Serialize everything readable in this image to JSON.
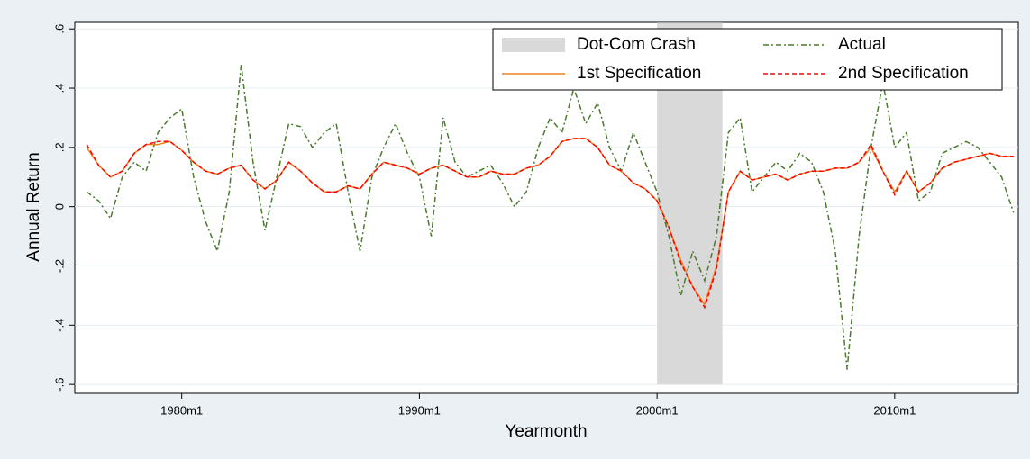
{
  "chart_data": {
    "type": "line",
    "xlabel": "Yearmonth",
    "ylabel": "Annual Return",
    "x": [
      1976,
      1976.5,
      1977,
      1977.5,
      1978,
      1978.5,
      1979,
      1979.5,
      1980,
      1980.5,
      1981,
      1981.5,
      1982,
      1982.5,
      1983,
      1983.5,
      1984,
      1984.5,
      1985,
      1985.5,
      1986,
      1986.5,
      1987,
      1987.5,
      1988,
      1988.5,
      1989,
      1989.5,
      1990,
      1990.5,
      1991,
      1991.5,
      1992,
      1992.5,
      1993,
      1993.5,
      1994,
      1994.5,
      1995,
      1995.5,
      1996,
      1996.5,
      1997,
      1997.5,
      1998,
      1998.5,
      1999,
      1999.5,
      2000,
      2000.5,
      2001,
      2001.5,
      2002,
      2002.5,
      2003,
      2003.5,
      2004,
      2004.5,
      2005,
      2005.5,
      2006,
      2006.5,
      2007,
      2007.5,
      2008,
      2008.5,
      2009,
      2009.5,
      2010,
      2010.5,
      2011,
      2011.5,
      2012,
      2012.5,
      2013,
      2013.5,
      2014,
      2014.5,
      2015
    ],
    "shade": {
      "name": "Dot-Com Crash",
      "color": "#d9d9d9",
      "x0": 2000,
      "x1": 2002.75,
      "y0": -0.6,
      "y1": 0.6
    },
    "series": [
      {
        "name": "Actual",
        "color": "#4a7a2c",
        "dash": "6 3 2 3",
        "values": [
          0.05,
          0.02,
          -0.04,
          0.1,
          0.15,
          0.12,
          0.25,
          0.3,
          0.33,
          0.1,
          -0.05,
          -0.15,
          0.05,
          0.48,
          0.15,
          -0.08,
          0.1,
          0.28,
          0.27,
          0.2,
          0.25,
          0.28,
          0.05,
          -0.15,
          0.1,
          0.2,
          0.28,
          0.18,
          0.1,
          -0.1,
          0.3,
          0.15,
          0.1,
          0.12,
          0.14,
          0.08,
          0.0,
          0.05,
          0.2,
          0.3,
          0.25,
          0.4,
          0.28,
          0.35,
          0.2,
          0.12,
          0.25,
          0.15,
          0.05,
          -0.1,
          -0.3,
          -0.15,
          -0.25,
          -0.1,
          0.25,
          0.3,
          0.05,
          0.1,
          0.15,
          0.12,
          0.18,
          0.15,
          0.05,
          -0.15,
          -0.55,
          -0.1,
          0.2,
          0.42,
          0.2,
          0.25,
          0.02,
          0.05,
          0.18,
          0.2,
          0.22,
          0.2,
          0.15,
          0.1,
          -0.02
        ]
      },
      {
        "name": "1st Specification",
        "color": "#f08020",
        "dash": "",
        "values": [
          0.2,
          0.14,
          0.1,
          0.12,
          0.18,
          0.21,
          0.21,
          0.22,
          0.19,
          0.15,
          0.12,
          0.11,
          0.13,
          0.14,
          0.09,
          0.06,
          0.09,
          0.15,
          0.12,
          0.08,
          0.05,
          0.05,
          0.07,
          0.06,
          0.11,
          0.15,
          0.14,
          0.13,
          0.11,
          0.13,
          0.14,
          0.12,
          0.1,
          0.1,
          0.12,
          0.11,
          0.11,
          0.13,
          0.14,
          0.17,
          0.22,
          0.23,
          0.23,
          0.2,
          0.14,
          0.12,
          0.08,
          0.06,
          0.02,
          -0.07,
          -0.18,
          -0.27,
          -0.33,
          -0.2,
          0.05,
          0.12,
          0.09,
          0.1,
          0.11,
          0.09,
          0.11,
          0.12,
          0.12,
          0.13,
          0.13,
          0.15,
          0.2,
          0.12,
          0.05,
          0.12,
          0.05,
          0.08,
          0.13,
          0.15,
          0.16,
          0.17,
          0.18,
          0.17,
          0.17
        ]
      },
      {
        "name": "2nd Specification",
        "color": "#ff0000",
        "dash": "5 3",
        "values": [
          0.21,
          0.14,
          0.1,
          0.12,
          0.18,
          0.21,
          0.22,
          0.22,
          0.19,
          0.15,
          0.12,
          0.11,
          0.13,
          0.14,
          0.09,
          0.06,
          0.09,
          0.15,
          0.12,
          0.08,
          0.05,
          0.05,
          0.07,
          0.06,
          0.11,
          0.15,
          0.14,
          0.13,
          0.11,
          0.13,
          0.14,
          0.12,
          0.1,
          0.1,
          0.12,
          0.11,
          0.11,
          0.13,
          0.14,
          0.17,
          0.22,
          0.23,
          0.23,
          0.2,
          0.14,
          0.12,
          0.08,
          0.06,
          0.02,
          -0.07,
          -0.19,
          -0.27,
          -0.34,
          -0.21,
          0.05,
          0.12,
          0.09,
          0.1,
          0.11,
          0.09,
          0.11,
          0.12,
          0.12,
          0.13,
          0.13,
          0.15,
          0.21,
          0.12,
          0.04,
          0.12,
          0.05,
          0.08,
          0.13,
          0.15,
          0.16,
          0.17,
          0.18,
          0.17,
          0.17
        ]
      }
    ],
    "xlim": [
      1975.5,
      2015.2
    ],
    "xticks": [
      {
        "value": 1980,
        "label": "1980m1"
      },
      {
        "value": 1990,
        "label": "1990m1"
      },
      {
        "value": 2000,
        "label": "2000m1"
      },
      {
        "value": 2010,
        "label": "2010m1"
      }
    ],
    "ylim": [
      -0.63,
      0.625
    ],
    "yticks": [
      {
        "value": -0.6,
        "label": "-.6"
      },
      {
        "value": -0.4,
        "label": "-.4"
      },
      {
        "value": -0.2,
        "label": "-.2"
      },
      0,
      {
        "value": 0.2,
        "label": ".2"
      },
      {
        "value": 0.4,
        "label": ".4"
      },
      {
        "value": 0.6,
        "label": ".6"
      }
    ],
    "grid": true,
    "legend": "upper right"
  }
}
